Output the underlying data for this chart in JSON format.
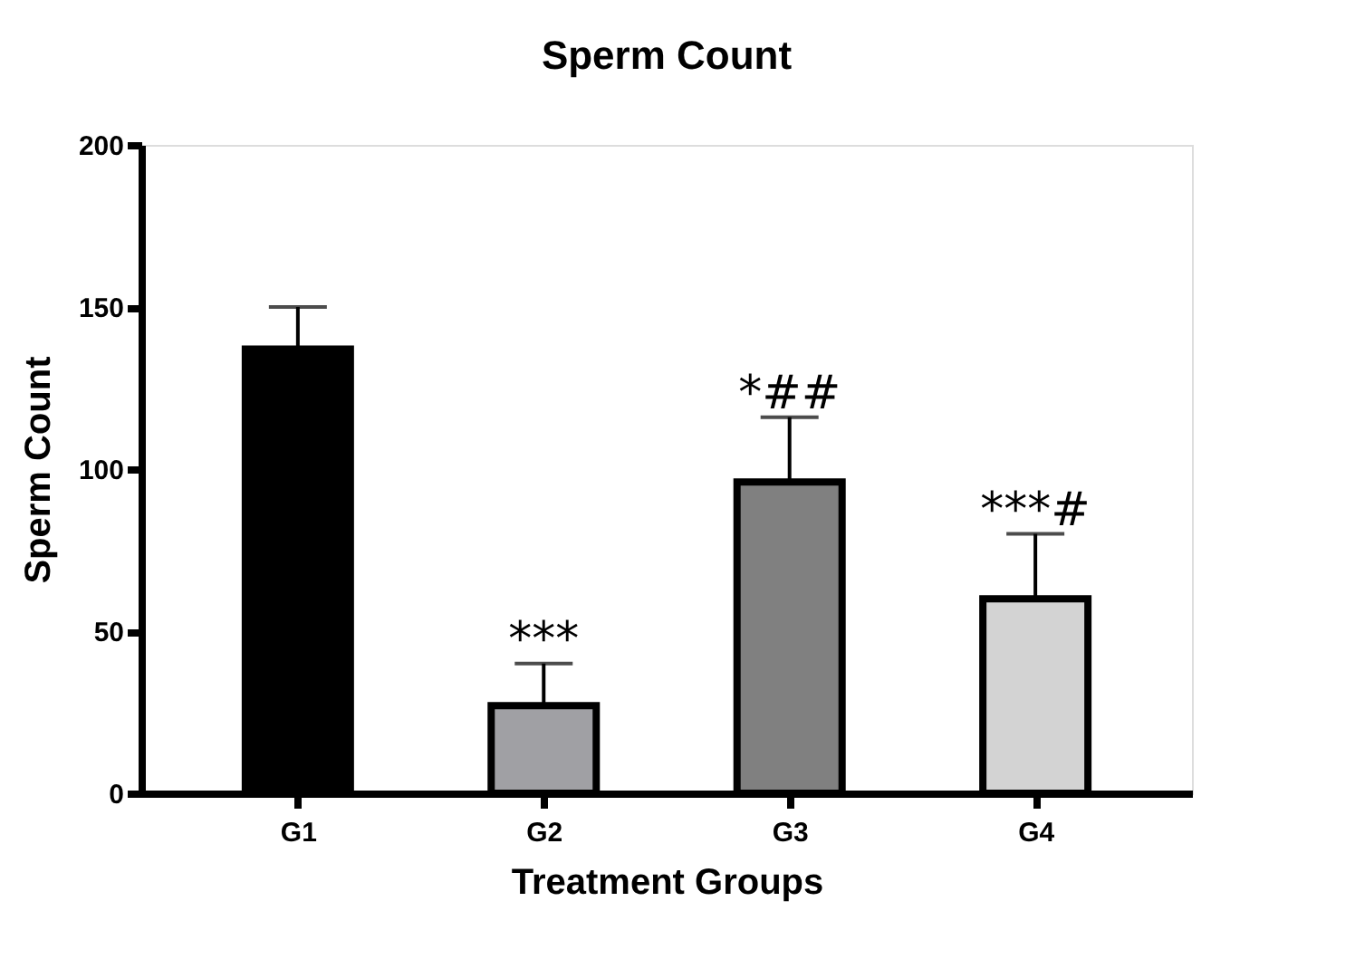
{
  "chart_data": {
    "type": "bar",
    "title": "Sperm Count",
    "xlabel": "Treatment Groups",
    "ylabel": "Sperm Count",
    "categories": [
      "G1",
      "G2",
      "G3",
      "G4"
    ],
    "values": [
      137,
      27,
      96,
      60
    ],
    "colors": [
      "#000000",
      "#a0a0a4",
      "#808080",
      "#d3d3d3"
    ],
    "errors": [
      [
        137,
        150
      ],
      [
        27,
        40
      ],
      [
        96,
        116
      ],
      [
        60,
        80
      ]
    ],
    "annotations": [
      {
        "text": "***",
        "x": "G2",
        "y": 40
      },
      {
        "text": "*##",
        "x": "G3",
        "y": 116
      },
      {
        "text": "***#",
        "x": "G4",
        "y": 80
      }
    ],
    "ylim": [
      0,
      200
    ],
    "yticks": [
      0,
      50,
      100,
      150,
      200
    ],
    "grid": false
  }
}
